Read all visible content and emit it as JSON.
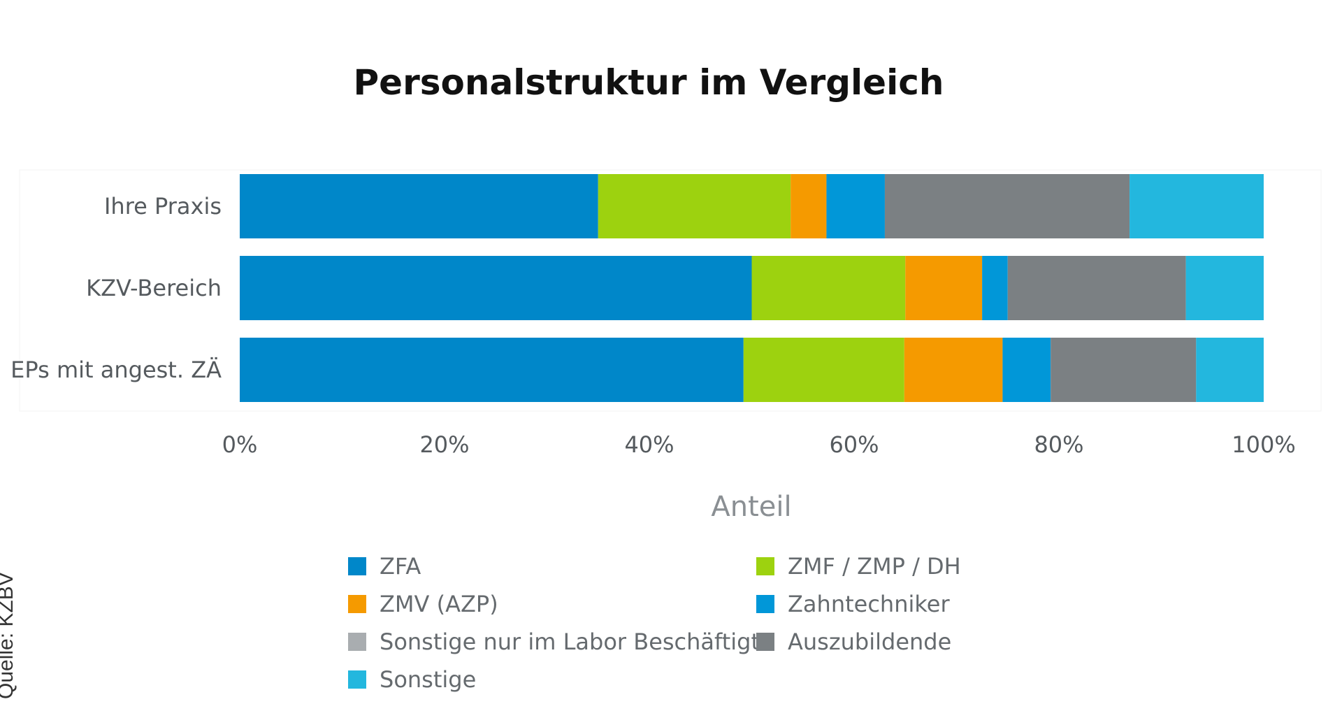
{
  "source_note": "Quelle: KZBV",
  "chart_data": {
    "type": "bar",
    "orientation": "horizontal",
    "stacked": "percent",
    "title": "Personalstruktur im Vergleich",
    "xlabel": "Anteil",
    "ylabel": "",
    "xlim": [
      0,
      100
    ],
    "x_ticks": [
      "0%",
      "20%",
      "40%",
      "60%",
      "80%",
      "100%"
    ],
    "legend_position": "bottom",
    "categories": [
      "Ihre Praxis",
      "KZV-Bereich",
      "EPs mit angest. ZÄ"
    ],
    "series": [
      {
        "name": "ZFA",
        "color": "#0087c9",
        "values": [
          35,
          50,
          49.2
        ]
      },
      {
        "name": "ZMF / ZMP / DH",
        "color": "#9dd20f",
        "values": [
          18.8,
          15,
          15.7
        ]
      },
      {
        "name": "ZMV (AZP)",
        "color": "#f59a00",
        "values": [
          3.5,
          7.5,
          9.6
        ]
      },
      {
        "name": "Zahntechniker",
        "color": "#0197d8",
        "values": [
          5.7,
          2.5,
          4.7
        ]
      },
      {
        "name": "Sonstige nur im Labor Beschäftigte",
        "color": "#a9adb0",
        "values": [
          0,
          0,
          0
        ]
      },
      {
        "name": "Auszubildende",
        "color": "#7b8083",
        "values": [
          23.9,
          17.4,
          14.2
        ]
      },
      {
        "name": "Sonstige",
        "color": "#23b7de",
        "values": [
          13.1,
          7.6,
          6.6
        ]
      }
    ]
  }
}
